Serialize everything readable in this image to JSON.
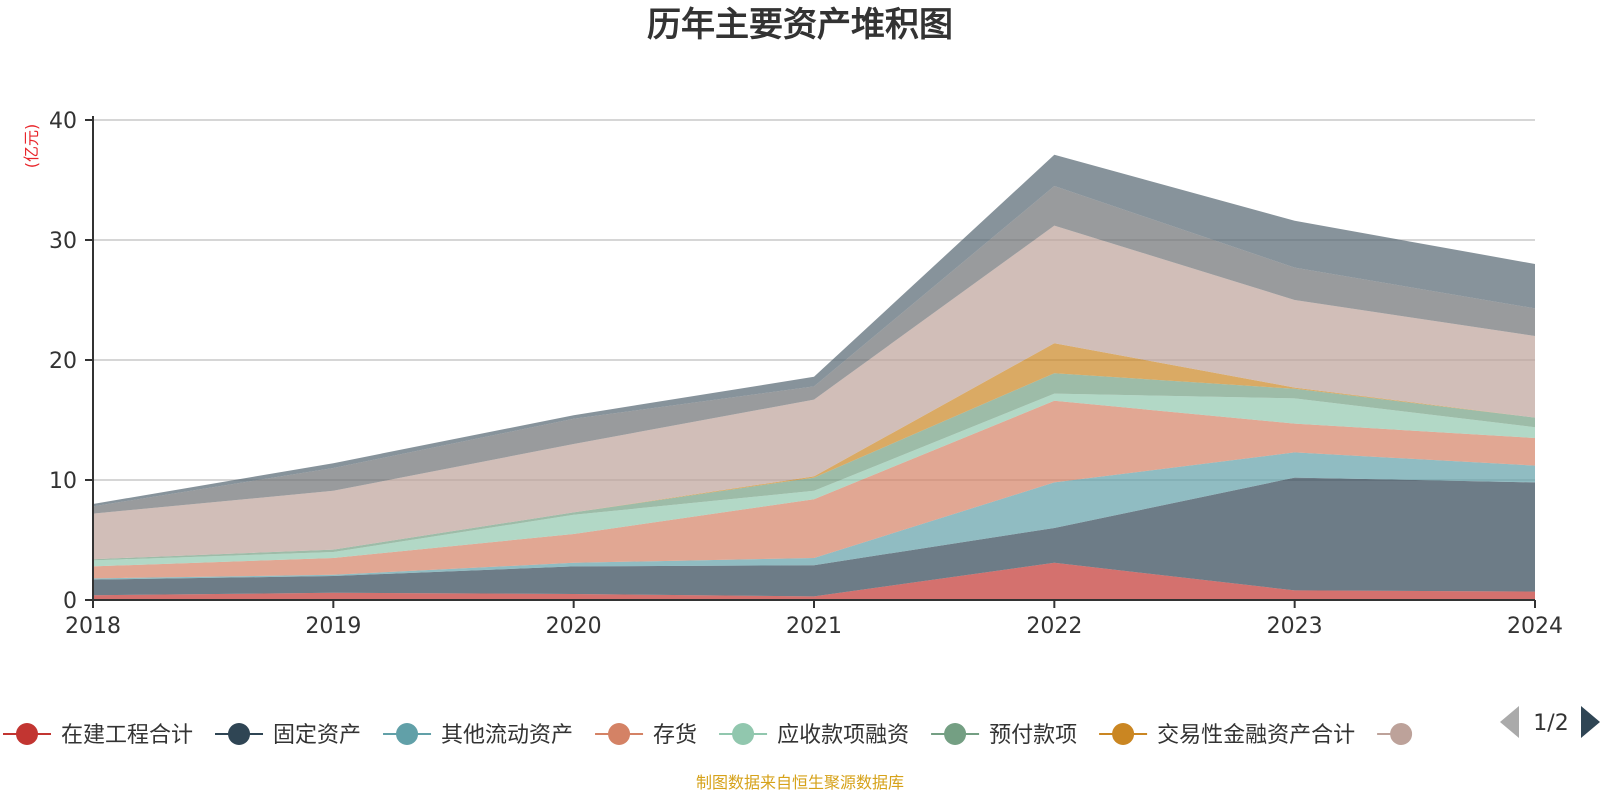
{
  "chart_data": {
    "type": "area",
    "title": "历年主要资产堆积图",
    "unit": "(亿元)",
    "x": [
      "2018",
      "2019",
      "2020",
      "2021",
      "2022",
      "2023",
      "2024"
    ],
    "ylim": [
      0,
      40
    ],
    "yticks": [
      0,
      10,
      20,
      30,
      40
    ],
    "stacked": true,
    "grid": true,
    "legend_position": "bottom",
    "legend_page": "1/2",
    "source": "制图数据来自恒生聚源数据库",
    "series": [
      {
        "name": "在建工程合计",
        "color": "#c23531",
        "values": [
          0.4,
          0.6,
          0.5,
          0.3,
          3.1,
          0.8,
          0.7
        ]
      },
      {
        "name": "固定资产",
        "color": "#2f4554",
        "values": [
          1.3,
          1.4,
          2.3,
          2.6,
          2.9,
          9.4,
          9.1
        ]
      },
      {
        "name": "其他流动资产",
        "color": "#61a0a8",
        "values": [
          0.1,
          0.1,
          0.3,
          0.6,
          3.8,
          2.1,
          1.4
        ]
      },
      {
        "name": "存货",
        "color": "#d48265",
        "values": [
          1.0,
          1.4,
          2.4,
          4.9,
          6.8,
          2.4,
          2.3
        ]
      },
      {
        "name": "应收款项融资",
        "color": "#91c7ae",
        "values": [
          0.5,
          0.5,
          1.6,
          0.7,
          0.6,
          2.1,
          0.9
        ]
      },
      {
        "name": "预付款项",
        "color": "#749f83",
        "values": [
          0.1,
          0.2,
          0.2,
          1.1,
          1.7,
          0.8,
          0.8
        ]
      },
      {
        "name": "交易性金融资产合计",
        "color": "#ca8622",
        "values": [
          0.0,
          0.0,
          0.0,
          0.1,
          2.5,
          0.1,
          0.0
        ]
      },
      {
        "name": "",
        "color": "#bda29a",
        "values": [
          3.8,
          4.9,
          5.7,
          6.4,
          9.8,
          7.3,
          6.8
        ]
      },
      {
        "name": "",
        "color": "#6e7074",
        "values": [
          0.6,
          1.9,
          2.1,
          1.1,
          3.3,
          2.7,
          2.3
        ]
      },
      {
        "name": "",
        "color": "#546570",
        "values": [
          0.2,
          0.4,
          0.3,
          0.8,
          2.6,
          3.9,
          3.7
        ]
      }
    ]
  }
}
